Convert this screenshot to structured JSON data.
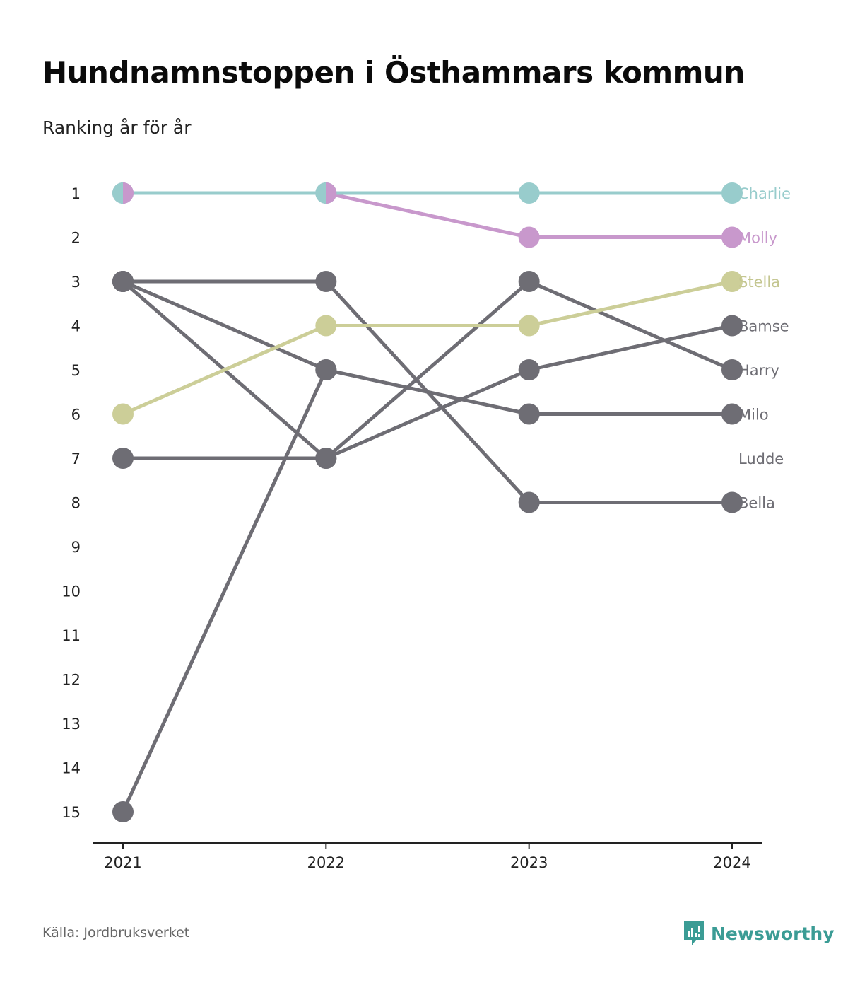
{
  "header": {
    "title": "Hundnamnstoppen i Östhammars kommun",
    "subtitle": "Ranking år för år"
  },
  "footer": {
    "source": "Källa: Jordbruksverket",
    "brand": "Newsworthy",
    "brand_icon": "newsworthy-logo-icon",
    "brand_color": "#3b9c95"
  },
  "chart_data": {
    "type": "line",
    "subtype": "bump",
    "title": "Hundnamnstoppen i Östhammars kommun",
    "subtitle": "Ranking år för år",
    "x": [
      "2021",
      "2022",
      "2023",
      "2024"
    ],
    "y_ticks": [
      1,
      2,
      3,
      4,
      5,
      6,
      7,
      8,
      9,
      10,
      11,
      12,
      13,
      14,
      15
    ],
    "ylim": [
      1,
      15
    ],
    "y_inverted": true,
    "grid": false,
    "legend": "direct labels at right end of lines",
    "series": [
      {
        "name": "Charlie",
        "values": [
          1,
          1,
          1,
          1
        ],
        "color": "#98cccc",
        "label_color": "#98cccc"
      },
      {
        "name": "Molly",
        "values": [
          1,
          1,
          2,
          2
        ],
        "color": "#c898cc",
        "label_color": "#c898cc"
      },
      {
        "name": "Stella",
        "values": [
          6,
          4,
          4,
          3
        ],
        "color": "#ccce98",
        "label_color": "#c4c690"
      },
      {
        "name": "Bamse",
        "values": [
          7,
          7,
          5,
          4
        ],
        "color": "#6e6d74",
        "label_color": "#6e6d74"
      },
      {
        "name": "Harry",
        "values": [
          3,
          7,
          3,
          5
        ],
        "color": "#6e6d74",
        "label_color": "#6e6d74"
      },
      {
        "name": "Milo",
        "values": [
          3,
          5,
          6,
          6
        ],
        "color": "#6e6d74",
        "label_color": "#6e6d74"
      },
      {
        "name": "Ludde",
        "values": [
          15,
          5,
          null,
          null
        ],
        "color": "#6e6d74",
        "label_color": "#6e6d74"
      },
      {
        "name": "Bella",
        "values": [
          3,
          3,
          8,
          8
        ],
        "color": "#6e6d74",
        "label_color": "#6e6d74"
      }
    ],
    "end_labels": [
      {
        "name": "Charlie",
        "rank": 1
      },
      {
        "name": "Molly",
        "rank": 2
      },
      {
        "name": "Stella",
        "rank": 3
      },
      {
        "name": "Bamse",
        "rank": 4
      },
      {
        "name": "Harry",
        "rank": 5
      },
      {
        "name": "Milo",
        "rank": 6
      },
      {
        "name": "Ludde",
        "rank": 7
      },
      {
        "name": "Bella",
        "rank": 8
      }
    ]
  }
}
